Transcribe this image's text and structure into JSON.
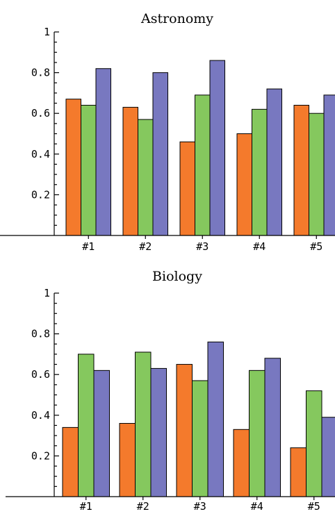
{
  "chart_data": [
    {
      "type": "bar",
      "title": "Astronomy",
      "categories": [
        "#1",
        "#2",
        "#3",
        "#4",
        "#5"
      ],
      "series": [
        {
          "values": [
            0.67,
            0.63,
            0.46,
            0.5,
            0.64
          ]
        },
        {
          "values": [
            0.64,
            0.57,
            0.69,
            0.62,
            0.6
          ]
        },
        {
          "values": [
            0.82,
            0.8,
            0.86,
            0.72,
            0.69
          ]
        }
      ],
      "yticks": [
        "0.2",
        "0.4",
        "0.6",
        "0.8",
        "1"
      ],
      "ylim": [
        0,
        1
      ],
      "grid": false,
      "colors": [
        "#f47a2c",
        "#85c85e",
        "#7878c0"
      ]
    },
    {
      "type": "bar",
      "title": "Biology",
      "categories": [
        "#1",
        "#2",
        "#3",
        "#4",
        "#5"
      ],
      "series": [
        {
          "values": [
            0.34,
            0.36,
            0.65,
            0.33,
            0.24
          ]
        },
        {
          "values": [
            0.7,
            0.71,
            0.57,
            0.62,
            0.52
          ]
        },
        {
          "values": [
            0.62,
            0.63,
            0.76,
            0.68,
            0.39
          ]
        }
      ],
      "yticks": [
        "0.2",
        "0.4",
        "0.6",
        "0.8",
        "1"
      ],
      "ylim": [
        0,
        1
      ],
      "grid": false,
      "colors": [
        "#f47a2c",
        "#85c85e",
        "#7878c0"
      ]
    }
  ]
}
